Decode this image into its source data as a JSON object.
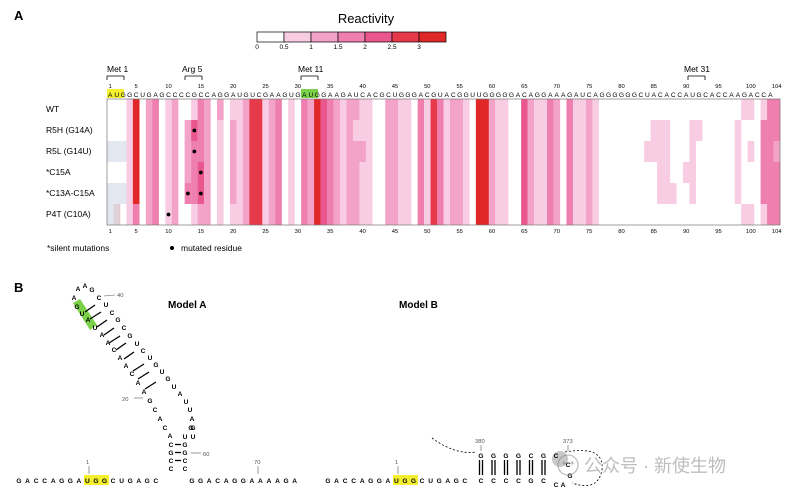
{
  "panel_a": {
    "letter": "A",
    "reactivity_title": "Reactivity",
    "scale_ticks": [
      "0",
      "0.5",
      "1",
      "1.5",
      "2",
      "2.5",
      "3"
    ],
    "scale_colors": [
      "#ffffff",
      "#f8cde3",
      "#f3a3c8",
      "#ee7fae",
      "#e9578e",
      "#e6394a",
      "#e02828"
    ],
    "codon_labels": [
      "Met 1",
      "Arg 5",
      "Met 11",
      "Met 31"
    ],
    "top_ticks": [
      "1",
      "5",
      "10",
      "15",
      "20",
      "25",
      "30",
      "35",
      "40",
      "45",
      "50",
      "55",
      "60",
      "65",
      "70",
      "75",
      "80",
      "85",
      "90",
      "95",
      "100",
      "104"
    ],
    "bottom_ticks": [
      "1",
      "5",
      "10",
      "15",
      "20",
      "25",
      "30",
      "35",
      "40",
      "45",
      "50",
      "55",
      "60",
      "65",
      "70",
      "75",
      "80",
      "85",
      "90",
      "95",
      "100",
      "104"
    ],
    "sequence": "AUGGCUGAGCCCCGCCAGGAUGUCGAAGUGAUGGAAGAUCACGCUGGGACGUACGGUUGGGGGACAGGAAAGAUCAGGGGGGCUACACCAUGCACCAAGACCA",
    "rows": [
      "WT",
      "R5H (G14A)",
      "R5L (G14U)",
      "*C15A",
      "*C13A-C15A",
      "P4T (C10A)"
    ],
    "footnote_silent": "*silent mutations",
    "footnote_mutated": "mutated residue"
  },
  "panel_b": {
    "letter": "B",
    "model_a": "Model A",
    "model_b": "Model B",
    "model_a_numbers": [
      "40",
      "20",
      "60",
      "70",
      "1"
    ],
    "model_b_numbers": [
      "380",
      "373",
      "1"
    ],
    "model_a_bottom": "GACCAGGAUGGCUGAGC",
    "model_a_bottom_tail": "GGACAGGAAAAGA",
    "model_b_bottom": "GACCAGGAUGGCUGAGC",
    "model_b_stem_top": "GGGGCGC",
    "model_b_stem_bottom": "CCCCGC",
    "watermark": "公众号 · 新使生物"
  },
  "chart_data": {
    "type": "heatmap",
    "title": "Reactivity",
    "x_range": [
      1,
      104
    ],
    "color_scale": [
      0,
      3
    ],
    "rows": [
      "WT",
      "R5H (G14A)",
      "R5L (G14U)",
      "*C15A",
      "*C13A-C15A",
      "P4T (C10A)"
    ],
    "series": [
      {
        "name": "WT",
        "values": [
          0,
          0,
          0,
          0.5,
          3,
          0,
          1,
          1.5,
          0,
          0.5,
          1,
          0,
          0,
          0.5,
          1.5,
          1,
          0,
          1,
          0,
          0.5,
          0.5,
          1,
          2.5,
          2.5,
          0.5,
          1,
          1.5,
          0,
          0.5,
          0,
          1.5,
          1,
          3,
          2,
          1.5,
          1,
          0.5,
          1,
          1,
          0.5,
          0.5,
          0,
          0,
          1,
          1,
          0.5,
          0.5,
          0,
          1.5,
          0.5,
          2.5,
          1.5,
          0.5,
          1,
          1,
          0.5,
          0,
          3,
          3,
          1,
          0.5,
          0.5,
          0,
          0,
          2,
          1,
          0.5,
          0.5,
          1.5,
          1,
          0,
          1.5,
          0.5,
          0.5,
          1,
          0.5,
          0,
          0,
          0,
          0,
          0,
          0,
          0,
          0,
          0,
          0,
          0,
          0,
          0,
          0,
          0,
          0,
          0,
          0,
          0,
          0,
          0,
          0,
          0.5,
          0.5,
          0,
          0.5,
          1.5,
          1.5
        ]
      },
      {
        "name": "R5H (G14A)",
        "values": [
          0,
          0,
          0,
          0.5,
          3,
          0,
          1,
          1.5,
          0,
          0.5,
          1,
          0,
          1,
          2,
          1.5,
          1,
          0,
          0.5,
          0,
          1,
          0.5,
          1,
          2.5,
          2.5,
          0.5,
          1,
          1.5,
          0,
          0.5,
          0,
          1.5,
          1,
          3,
          2,
          1.5,
          1,
          0.5,
          1,
          0.5,
          0.5,
          0.5,
          0,
          0,
          1,
          1,
          0.5,
          0.5,
          0,
          1.5,
          0.5,
          2.5,
          1.5,
          0.5,
          1,
          1,
          0.5,
          0,
          3,
          3,
          1,
          0.5,
          0.5,
          0,
          0,
          2,
          1,
          0.5,
          0.5,
          1.5,
          1,
          0,
          1.5,
          0.5,
          0.5,
          1,
          0.5,
          0,
          0,
          0,
          0,
          0,
          0,
          0,
          0,
          0.5,
          0.5,
          0.5,
          0,
          0,
          0,
          0.5,
          0.5,
          0,
          0,
          0,
          0,
          0,
          0.5,
          0,
          0,
          0,
          1.5,
          1.5,
          1.5
        ]
      },
      {
        "name": "R5L (G14U)",
        "values": [
          0,
          0,
          0,
          0.5,
          3,
          0,
          1,
          1.5,
          0,
          0.5,
          1,
          0,
          1,
          1.5,
          1.5,
          1,
          0,
          0.5,
          0,
          1,
          0.5,
          1,
          2.5,
          2.5,
          0.5,
          1,
          1.5,
          0,
          0.5,
          0,
          1.5,
          1,
          3,
          2,
          1.5,
          1,
          0.5,
          1,
          1,
          1,
          0.5,
          0,
          0,
          1,
          1,
          0.5,
          0.5,
          0,
          1.5,
          0.5,
          2.5,
          1.5,
          0.5,
          1,
          1,
          0.5,
          0,
          3,
          3,
          1,
          0.5,
          0.5,
          0,
          0,
          2,
          1,
          0.5,
          0.5,
          1.5,
          1,
          0,
          1.5,
          0.5,
          0.5,
          1,
          0.5,
          0,
          0,
          0,
          0,
          0,
          0,
          0,
          0.5,
          0.5,
          0.5,
          0.5,
          0,
          0,
          0,
          0.5,
          0,
          0,
          0,
          0,
          0,
          0,
          0.5,
          0,
          0.5,
          0,
          1.5,
          1.5,
          1
        ]
      },
      {
        "name": "*C15A",
        "values": [
          0,
          0,
          0,
          0.5,
          3,
          0,
          1,
          1.5,
          0,
          0.5,
          1,
          0,
          1,
          1.5,
          2,
          1,
          0,
          0.5,
          0,
          1,
          0.5,
          1,
          2.5,
          2.5,
          0.5,
          1,
          1.5,
          0,
          0.5,
          0,
          1.5,
          1,
          3,
          2,
          1.5,
          1,
          0.5,
          1,
          1,
          0.5,
          0.5,
          0,
          0,
          1,
          1,
          0.5,
          0.5,
          0,
          1.5,
          0.5,
          2.5,
          1.5,
          0.5,
          1,
          1,
          0.5,
          0,
          3,
          3,
          1,
          0.5,
          0.5,
          0,
          0,
          2,
          1,
          0.5,
          0.5,
          1.5,
          1,
          0,
          1.5,
          0.5,
          0.5,
          1,
          0.5,
          0,
          0,
          0,
          0,
          0,
          0,
          0,
          0,
          0,
          0.5,
          0.5,
          0,
          0,
          0.5,
          0.5,
          0,
          0,
          0,
          0,
          0,
          0,
          0.5,
          0,
          0,
          0,
          1.5,
          1.5,
          1.5
        ]
      },
      {
        "name": "*C13A-C15A",
        "values": [
          0,
          0,
          0,
          0.5,
          3,
          0,
          1,
          1.5,
          0,
          0.5,
          1,
          0,
          1.5,
          1.5,
          2,
          1,
          0,
          0.5,
          0,
          1,
          0.5,
          1,
          2.5,
          2.5,
          0.5,
          1,
          1.5,
          0,
          0.5,
          0,
          1.5,
          1,
          3,
          2,
          1.5,
          1,
          0.5,
          1,
          1,
          0.5,
          0.5,
          0,
          0,
          1,
          1,
          0.5,
          0.5,
          0,
          1.5,
          0.5,
          2.5,
          1.5,
          0.5,
          1,
          1,
          0.5,
          0,
          3,
          3,
          1,
          0.5,
          0.5,
          0,
          0,
          2,
          1,
          0.5,
          0.5,
          1.5,
          1,
          0,
          1.5,
          0.5,
          0.5,
          1,
          0.5,
          0,
          0,
          0,
          0,
          0,
          0,
          0,
          0,
          0,
          0.5,
          0.5,
          0.5,
          0,
          0,
          0.5,
          0,
          0,
          0,
          0,
          0,
          0,
          0.5,
          0,
          0,
          0,
          1.5,
          1.5,
          1.5
        ]
      },
      {
        "name": "P4T (C10A)",
        "values": [
          0,
          3,
          0,
          0.5,
          1.5,
          0,
          1,
          1.5,
          0,
          0.5,
          1,
          0,
          0,
          0.5,
          1,
          1,
          0,
          0.5,
          0,
          0.5,
          0.5,
          1,
          2.5,
          2.5,
          0.5,
          1,
          1.5,
          0,
          0.5,
          0,
          1.5,
          1,
          3,
          2,
          1.5,
          1,
          0.5,
          1,
          1,
          0.5,
          0.5,
          0,
          0,
          1,
          1,
          0.5,
          0.5,
          0,
          1.5,
          0.5,
          2.5,
          1.5,
          0.5,
          1,
          1,
          0.5,
          0,
          3,
          3,
          1,
          0.5,
          0.5,
          0,
          0,
          2,
          1,
          0.5,
          0.5,
          1.5,
          1,
          0,
          1.5,
          0.5,
          0.5,
          1,
          0.5,
          0,
          0,
          0,
          0,
          0,
          0,
          0,
          0,
          0,
          0,
          0,
          0,
          0,
          0,
          0,
          0,
          0,
          0,
          0,
          0,
          0,
          0,
          0.5,
          0.5,
          0,
          0.5,
          1.5,
          1.5
        ]
      }
    ],
    "mutated_positions": [
      {
        "row": "R5H (G14A)",
        "position": 14
      },
      {
        "row": "R5L (G14U)",
        "position": 14
      },
      {
        "row": "*C15A",
        "position": 15
      },
      {
        "row": "*C13A-C15A",
        "position": 13
      },
      {
        "row": "*C13A-C15A",
        "position": 15
      },
      {
        "row": "P4T (C10A)",
        "position": 10
      }
    ]
  }
}
